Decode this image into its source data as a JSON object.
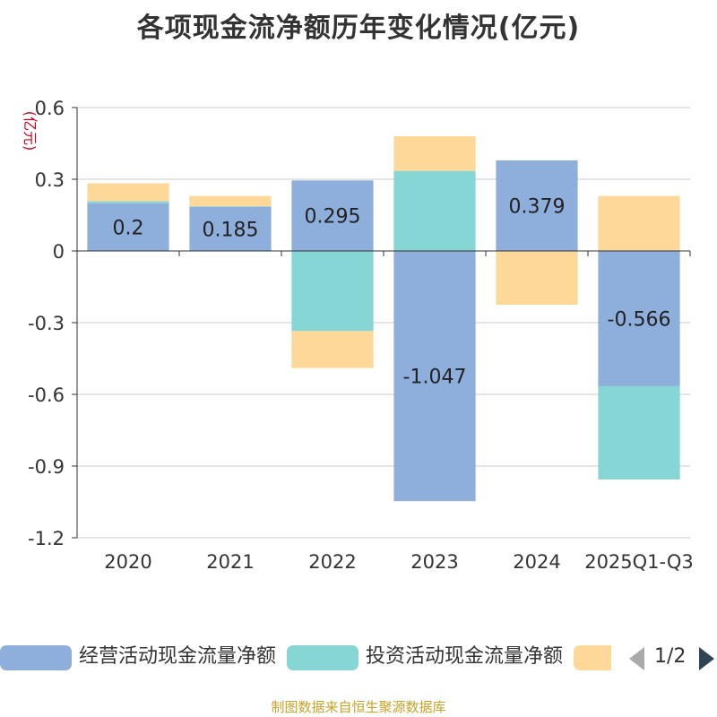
{
  "chart_data": {
    "type": "bar",
    "stacked": true,
    "title": "各项现金流净额历年变化情况(亿元)",
    "ylabel": "(亿元)",
    "ylim": [
      -1.2,
      0.6
    ],
    "yticks": [
      0.6,
      0.3,
      0,
      -0.3,
      -0.6,
      -0.9,
      -1.2
    ],
    "ytick_labels": [
      "0.6",
      "0.3",
      "0",
      "-0.3",
      "-0.6",
      "-0.9",
      "-1.2"
    ],
    "grid": true,
    "categories": [
      "2020",
      "2021",
      "2022",
      "2023",
      "2024",
      "2025Q1-Q3"
    ],
    "series": [
      {
        "name": "经营活动现金流量净额",
        "color": "#8eaedb",
        "values": [
          0.2,
          0.185,
          0.295,
          -1.047,
          0.379,
          -0.566
        ],
        "show_labels": true
      },
      {
        "name": "投资活动现金流量净额",
        "color": "#87d6d6",
        "values": [
          0.008,
          0.002,
          -0.335,
          0.335,
          0.0,
          -0.39
        ],
        "show_labels": false
      },
      {
        "name": "",
        "color": "#fed898",
        "values": [
          0.075,
          0.043,
          -0.155,
          0.145,
          -0.225,
          0.23
        ],
        "show_labels": false
      }
    ],
    "data_labels": [
      "0.2",
      "0.185",
      "0.295",
      "-1.047",
      "0.379",
      "-0.566"
    ]
  },
  "legend": {
    "items": [
      {
        "label": "经营活动现金流量净额",
        "color": "#8eaedb"
      },
      {
        "label": "投资活动现金流量净额",
        "color": "#87d6d6"
      },
      {
        "label": "",
        "color": "#fed898"
      }
    ],
    "pager_text": "1/2"
  },
  "footer": {
    "source": "制图数据来自恒生聚源数据库"
  }
}
